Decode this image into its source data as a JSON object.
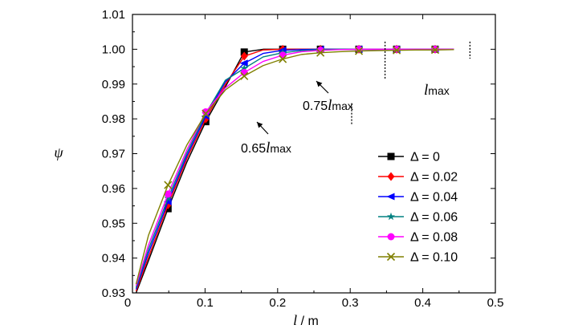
{
  "chart_data": {
    "type": "line",
    "xlabel": "l / m",
    "ylabel": "ψ",
    "xlim": [
      0,
      0.5
    ],
    "ylim": [
      0.93,
      1.01
    ],
    "xticks": [
      "0",
      "0.1",
      "0.2",
      "0.3",
      "0.4",
      "0.5"
    ],
    "xtick_values": [
      0,
      0.1,
      0.2,
      0.3,
      0.4,
      0.5
    ],
    "yticks": [
      "0.93",
      "0.94",
      "0.95",
      "0.96",
      "0.97",
      "0.98",
      "0.99",
      "1.00",
      "1.01"
    ],
    "ytick_values": [
      0.93,
      0.94,
      0.95,
      0.96,
      0.97,
      0.98,
      0.99,
      1.0,
      1.01
    ],
    "grid": false,
    "legend_position": "right-middle",
    "x": [
      0.005,
      0.022,
      0.049,
      0.075,
      0.101,
      0.128,
      0.154,
      0.18,
      0.207,
      0.233,
      0.259,
      0.285,
      0.312,
      0.338,
      0.364,
      0.39,
      0.417,
      0.443
    ],
    "series": [
      {
        "name": "Δ = 0",
        "color": "#000000",
        "marker": "square",
        "values": [
          0.93,
          0.9392,
          0.9542,
          0.9676,
          0.9792,
          0.9892,
          0.9992,
          1.0,
          1.0,
          1.0,
          1.0,
          1.0,
          1.0,
          1.0,
          1.0,
          1.0,
          1.0,
          1.0
        ]
      },
      {
        "name": "Δ = 0.02",
        "color": "#ff0000",
        "marker": "diamond",
        "values": [
          0.9305,
          0.9402,
          0.9553,
          0.9686,
          0.98,
          0.9899,
          0.998,
          0.9998,
          1.0,
          1.0,
          1.0,
          1.0,
          1.0,
          1.0,
          1.0,
          1.0,
          1.0,
          1.0
        ]
      },
      {
        "name": "Δ = 0.04",
        "color": "#0000ff",
        "marker": "triangle-left",
        "values": [
          0.931,
          0.9414,
          0.9562,
          0.9694,
          0.9808,
          0.9906,
          0.996,
          0.9988,
          0.9997,
          0.9999,
          1.0,
          1.0,
          1.0,
          1.0,
          1.0,
          1.0,
          1.0,
          1.0
        ]
      },
      {
        "name": "Δ = 0.06",
        "color": "#008080",
        "marker": "star",
        "values": [
          0.9315,
          0.9425,
          0.9572,
          0.9702,
          0.9815,
          0.9911,
          0.9945,
          0.9978,
          0.999,
          0.9996,
          0.9999,
          1.0,
          1.0,
          1.0,
          1.0,
          1.0,
          1.0,
          1.0
        ]
      },
      {
        "name": "Δ = 0.08",
        "color": "#ff00ff",
        "marker": "circle",
        "values": [
          0.932,
          0.9437,
          0.9584,
          0.9711,
          0.982,
          0.9889,
          0.9933,
          0.9965,
          0.9983,
          0.9993,
          0.9997,
          0.9999,
          1.0,
          1.0,
          1.0,
          1.0,
          1.0,
          1.0
        ]
      },
      {
        "name": "Δ = 0.10",
        "color": "#808000",
        "marker": "x",
        "values": [
          0.9325,
          0.9465,
          0.961,
          0.9725,
          0.9815,
          0.9883,
          0.9923,
          0.9953,
          0.9972,
          0.9985,
          0.999,
          0.9993,
          0.9995,
          0.9996,
          0.9997,
          0.9998,
          0.9998,
          0.9999
        ]
      }
    ],
    "annotations": [
      {
        "label": "0.65",
        "italic": "l",
        "sub": "max",
        "x_value": 0.302,
        "y_value": 0.981
      },
      {
        "label": "0.75",
        "italic": "l",
        "sub": "max",
        "x_value": 0.348,
        "y_value": 0.993
      },
      {
        "label": "",
        "italic": "l",
        "sub": "max",
        "x_value": 0.465,
        "y_value": 0.9995
      }
    ]
  }
}
